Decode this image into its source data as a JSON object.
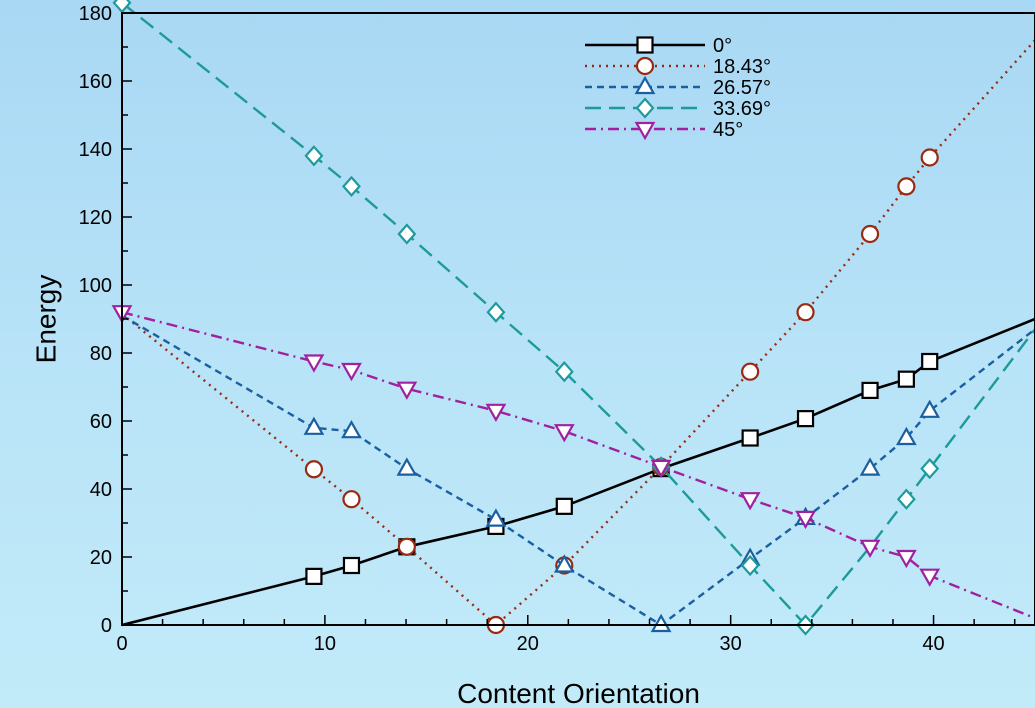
{
  "chart_data": {
    "type": "line",
    "xlabel": "Content Orientation",
    "ylabel": "Energy",
    "xlim": [
      0,
      45
    ],
    "ylim": [
      0,
      180
    ],
    "x_ticks": [
      0,
      10,
      20,
      30,
      40
    ],
    "y_ticks": [
      0,
      20,
      40,
      60,
      80,
      100,
      120,
      140,
      160,
      180
    ],
    "grid": false,
    "legend_position": "top-right",
    "series": [
      {
        "name": "0°",
        "color": "#000000",
        "dash": "solid",
        "marker": "square",
        "x": [
          0,
          9.46,
          11.31,
          14.04,
          18.43,
          21.8,
          26.57,
          30.96,
          33.69,
          36.87,
          38.66,
          39.81,
          45
        ],
        "y": [
          0,
          14.3,
          17.5,
          23,
          29,
          34.9,
          46,
          55,
          60.7,
          69,
          72.3,
          77.5,
          90
        ],
        "markers_at": [
          9.46,
          11.31,
          14.04,
          18.43,
          21.8,
          26.57,
          30.96,
          33.69,
          36.87,
          38.66,
          39.81
        ]
      },
      {
        "name": "18.43°",
        "color": "#992a10",
        "dash": "dotted",
        "marker": "circle",
        "x": [
          0,
          9.46,
          11.31,
          14.04,
          18.43,
          21.8,
          26.57,
          30.96,
          33.69,
          36.87,
          38.66,
          39.81,
          45
        ],
        "y": [
          91.5,
          45.8,
          37,
          23,
          0,
          17.5,
          46.5,
          74.5,
          92,
          115,
          129,
          137.5,
          172
        ],
        "markers_at": [
          9.46,
          11.31,
          14.04,
          18.43,
          21.8,
          26.57,
          30.96,
          33.69,
          36.87,
          38.66,
          39.81
        ]
      },
      {
        "name": "26.57°",
        "color": "#1a5fa0",
        "dash": "dashed",
        "marker": "triangle-up",
        "x": [
          0,
          9.46,
          11.31,
          14.04,
          18.43,
          21.8,
          26.57,
          30.96,
          33.69,
          36.87,
          38.66,
          39.81,
          45
        ],
        "y": [
          91,
          58,
          57,
          46,
          31,
          17.5,
          0,
          19.5,
          31.5,
          46,
          55,
          63,
          87
        ],
        "markers_at": [
          9.46,
          11.31,
          14.04,
          18.43,
          21.8,
          26.57,
          30.96,
          33.69,
          36.87,
          38.66,
          39.81
        ]
      },
      {
        "name": "33.69°",
        "color": "#1d9a9a",
        "dash": "long-dash",
        "marker": "diamond",
        "x": [
          0,
          9.46,
          11.31,
          14.04,
          18.43,
          21.8,
          26.57,
          30.96,
          33.69,
          36.87,
          38.66,
          39.81,
          45
        ],
        "y": [
          183,
          138,
          129,
          115,
          92,
          74.5,
          46.5,
          17.5,
          0,
          23,
          37,
          46,
          87
        ],
        "markers_at": [
          0,
          9.46,
          11.31,
          14.04,
          18.43,
          21.8,
          26.57,
          30.96,
          33.69,
          38.66,
          39.81
        ]
      },
      {
        "name": "45°",
        "color": "#a020a0",
        "dash": "dash-dot",
        "marker": "triangle-down",
        "x": [
          0,
          9.46,
          11.31,
          14.04,
          18.43,
          21.8,
          26.57,
          30.96,
          33.69,
          36.87,
          38.66,
          39.81,
          45
        ],
        "y": [
          92,
          77.5,
          75,
          69.5,
          63,
          57,
          46.5,
          37,
          31.5,
          23,
          20,
          14.5,
          2
        ],
        "markers_at": [
          0,
          9.46,
          11.31,
          14.04,
          18.43,
          21.8,
          26.57,
          30.96,
          33.69,
          36.87,
          38.66,
          39.81
        ]
      }
    ]
  }
}
